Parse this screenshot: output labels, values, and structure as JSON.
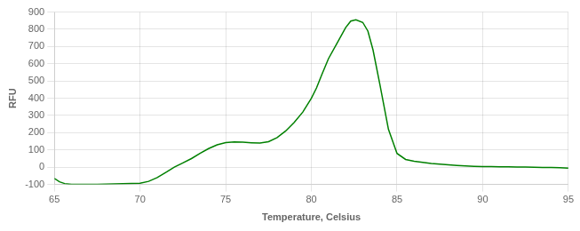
{
  "chart_data": {
    "type": "line",
    "xlabel": "Temperature, Celsius",
    "ylabel": "RFU",
    "x": [
      65.0,
      65.3,
      65.6,
      66.0,
      66.5,
      67.0,
      67.5,
      68.0,
      68.5,
      69.0,
      69.5,
      70.0,
      70.5,
      71.0,
      71.5,
      72.0,
      72.5,
      73.0,
      73.5,
      74.0,
      74.5,
      75.0,
      75.5,
      76.0,
      76.5,
      77.0,
      77.5,
      78.0,
      78.5,
      79.0,
      79.5,
      80.0,
      80.3,
      80.6,
      81.0,
      81.5,
      82.0,
      82.3,
      82.6,
      83.0,
      83.3,
      83.6,
      84.0,
      84.5,
      85.0,
      85.5,
      86.0,
      86.5,
      87.0,
      87.5,
      88.0,
      88.5,
      89.0,
      89.5,
      90.0,
      90.5,
      91.0,
      91.5,
      92.0,
      92.5,
      93.0,
      93.5,
      94.0,
      94.5,
      95.0
    ],
    "values": [
      -65,
      -85,
      -95,
      -100,
      -100,
      -100,
      -100,
      -98,
      -97,
      -95,
      -94,
      -93,
      -82,
      -60,
      -30,
      0,
      25,
      50,
      80,
      108,
      130,
      143,
      147,
      145,
      142,
      140,
      148,
      172,
      210,
      260,
      320,
      400,
      460,
      535,
      630,
      720,
      810,
      848,
      855,
      840,
      790,
      680,
      480,
      220,
      80,
      45,
      35,
      28,
      22,
      18,
      14,
      10,
      7,
      5,
      4,
      3,
      2,
      2,
      1,
      1,
      0,
      -1,
      -2,
      -3,
      -5
    ],
    "color": "#008000",
    "xlim": [
      65,
      95
    ],
    "ylim": [
      -100,
      900
    ],
    "xticks": [
      65,
      70,
      75,
      80,
      85,
      90,
      95
    ],
    "yticks": [
      -100,
      0,
      100,
      200,
      300,
      400,
      500,
      600,
      700,
      800,
      900
    ],
    "grid": true
  }
}
